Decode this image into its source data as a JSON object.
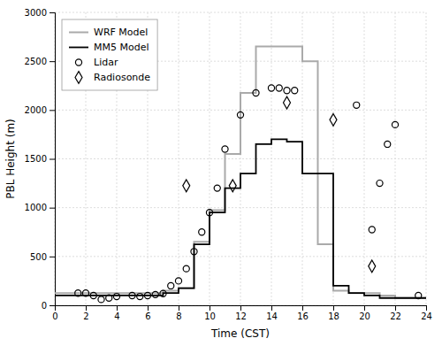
{
  "chart_data": {
    "type": "line",
    "xlabel": "Time (CST)",
    "ylabel": "PBL Height (m)",
    "xlim": [
      0,
      24
    ],
    "ylim": [
      0,
      3000
    ],
    "xticks": [
      0,
      2,
      4,
      6,
      8,
      10,
      12,
      14,
      16,
      18,
      20,
      22,
      24
    ],
    "yticks": [
      0,
      500,
      1000,
      1500,
      2000,
      2500,
      3000
    ],
    "grid": true,
    "legend": "upper left",
    "series": [
      {
        "name": "WRF Model",
        "type": "line",
        "color": "#aaaaaa",
        "x": [
          0,
          1,
          1,
          2,
          2,
          3,
          3,
          4,
          4,
          5,
          5,
          6,
          6,
          7,
          7,
          8,
          8,
          9,
          9,
          10,
          10,
          11,
          11,
          12,
          12,
          13,
          13,
          14,
          14,
          15,
          15,
          16,
          16,
          17,
          17,
          18,
          18,
          19,
          19,
          20,
          20,
          21,
          21,
          22,
          22,
          23,
          23,
          24
        ],
        "values": [
          125,
          125,
          125,
          125,
          125,
          125,
          125,
          125,
          125,
          125,
          125,
          125,
          125,
          125,
          150,
          150,
          175,
          175,
          650,
          650,
          975,
          975,
          1550,
          1550,
          2175,
          2175,
          2650,
          2650,
          2650,
          2650,
          2650,
          2650,
          2500,
          2500,
          625,
          625,
          150,
          150,
          125,
          125,
          125,
          125,
          100,
          100,
          75,
          75,
          75,
          75
        ]
      },
      {
        "name": "MM5 Model",
        "type": "line",
        "color": "#000000",
        "x": [
          0,
          1,
          1,
          2,
          2,
          3,
          3,
          4,
          4,
          5,
          5,
          6,
          6,
          7,
          7,
          8,
          8,
          9,
          9,
          10,
          10,
          11,
          11,
          12,
          12,
          13,
          13,
          14,
          14,
          15,
          15,
          16,
          16,
          17,
          17,
          18,
          18,
          19,
          19,
          20,
          20,
          21,
          21,
          22,
          22,
          23,
          23,
          24
        ],
        "values": [
          100,
          100,
          100,
          100,
          100,
          100,
          100,
          100,
          100,
          100,
          100,
          100,
          100,
          100,
          125,
          125,
          175,
          175,
          625,
          625,
          950,
          950,
          1200,
          1200,
          1350,
          1350,
          1650,
          1650,
          1700,
          1700,
          1675,
          1675,
          1350,
          1350,
          1350,
          1350,
          200,
          200,
          125,
          125,
          100,
          100,
          75,
          75,
          75,
          75,
          75,
          75
        ]
      },
      {
        "name": "Lidar",
        "type": "scatter",
        "marker": "circle",
        "color": "#000000",
        "x": [
          1.5,
          2.0,
          2.5,
          3.0,
          3.5,
          4.0,
          5.0,
          5.5,
          6.0,
          6.5,
          7.0,
          7.5,
          8.0,
          8.5,
          9.0,
          9.5,
          10.0,
          10.5,
          11.0,
          12.0,
          13.0,
          14.0,
          14.5,
          15.0,
          15.5,
          19.5,
          20.5,
          21.0,
          21.5,
          22.0,
          23.5
        ],
        "values": [
          125,
          125,
          100,
          60,
          75,
          90,
          100,
          90,
          100,
          110,
          120,
          200,
          250,
          375,
          550,
          750,
          950,
          1200,
          1600,
          1950,
          2175,
          2225,
          2225,
          2200,
          2200,
          2050,
          775,
          1250,
          1650,
          1850,
          100
        ]
      },
      {
        "name": "Radiosonde",
        "type": "scatter",
        "marker": "diamond",
        "color": "#000000",
        "x": [
          8.5,
          11.5,
          15.0,
          18.0,
          20.5
        ],
        "values": [
          1225,
          1225,
          2075,
          1900,
          400
        ]
      }
    ]
  }
}
